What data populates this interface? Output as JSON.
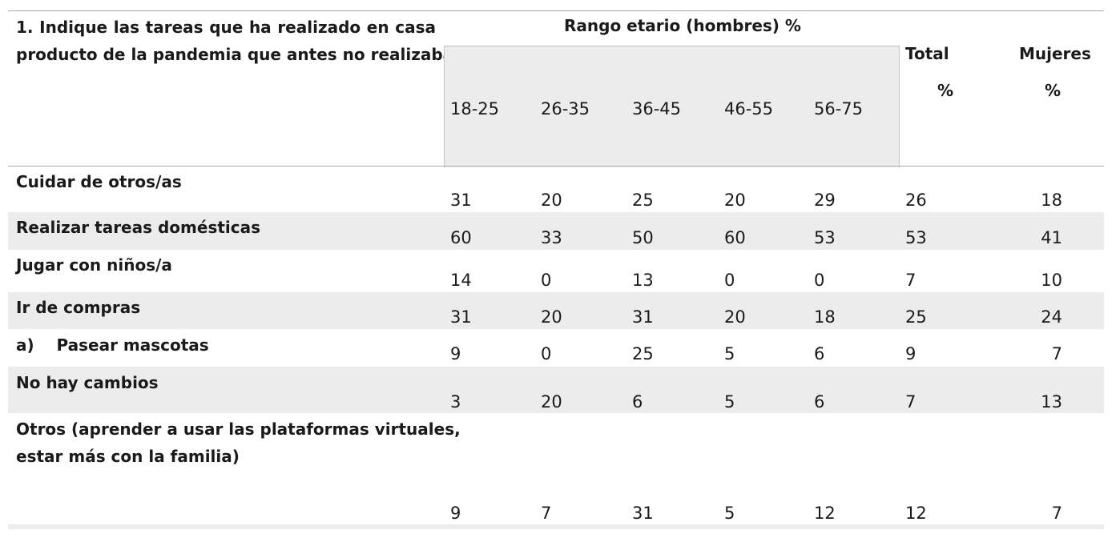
{
  "table": {
    "question_line1": "1. Indique las tareas que ha realizado en casa",
    "question_line2": "producto de la pandemia que antes no realizaba",
    "group_header": "Rango etario (hombres) %",
    "age_ranges": [
      "18-25",
      "26-35",
      "36-45",
      "46-55",
      "56-75"
    ],
    "total_header": "Total",
    "total_unit": "%",
    "women_header": "Mujeres",
    "women_unit": "%",
    "rows": [
      {
        "label": "Cuidar de otros/as",
        "values": [
          "31",
          "20",
          "25",
          "20",
          "29",
          "26",
          "18"
        ]
      },
      {
        "label": "Realizar tareas domésticas",
        "values": [
          "60",
          "33",
          "50",
          "60",
          "53",
          "53",
          "41"
        ]
      },
      {
        "label": "Jugar con niños/a",
        "values": [
          "14",
          "0",
          "13",
          "0",
          "0",
          "7",
          "10"
        ]
      },
      {
        "label": "Ir de compras",
        "values": [
          "31",
          "20",
          "31",
          "20",
          "18",
          "25",
          "24"
        ]
      },
      {
        "label": "a)    Pasear mascotas",
        "values": [
          "9",
          "0",
          "25",
          "5",
          "6",
          "9",
          "7"
        ]
      },
      {
        "label": "No hay cambios",
        "values": [
          "3",
          "20",
          "6",
          "5",
          "6",
          "7",
          "13"
        ]
      },
      {
        "label_line1": "Otros (aprender a usar las plataformas virtuales,",
        "label_line2": "estar más con la familia)",
        "values": [
          "9",
          "7",
          "31",
          "5",
          "12",
          "12",
          "7"
        ]
      }
    ]
  }
}
